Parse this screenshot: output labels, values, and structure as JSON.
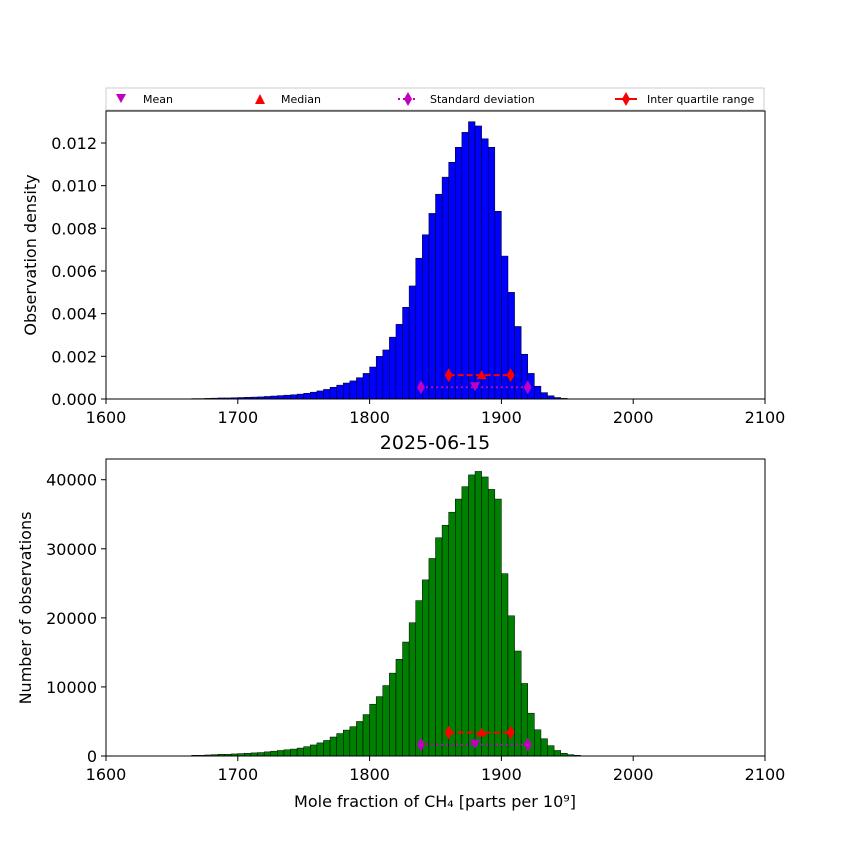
{
  "chart_data": [
    {
      "type": "bar",
      "variant": "histogram",
      "title": "",
      "xlabel": "",
      "ylabel": "Observation density",
      "xlim": [
        1600,
        2100
      ],
      "ylim": [
        0,
        0.0135
      ],
      "xticks": [
        "1600",
        "1700",
        "1800",
        "1900",
        "2000",
        "2100"
      ],
      "yticks": [
        "0.000",
        "0.002",
        "0.004",
        "0.006",
        "0.008",
        "0.010",
        "0.012"
      ],
      "bar_color": "#0000ff",
      "bin_width": 5,
      "bin_start": 1660,
      "values": [
        0,
        2e-05,
        2e-05,
        3e-05,
        4e-05,
        5e-05,
        5e-05,
        6e-05,
        7e-05,
        8e-05,
        9e-05,
        0.0001,
        0.00012,
        0.00014,
        0.00016,
        0.00018,
        0.0002,
        0.00023,
        0.00027,
        0.00032,
        0.00038,
        0.00045,
        0.00055,
        0.00065,
        0.00075,
        0.00085,
        0.001,
        0.0012,
        0.0015,
        0.002,
        0.0023,
        0.0029,
        0.0035,
        0.0043,
        0.0053,
        0.0066,
        0.0077,
        0.0087,
        0.0096,
        0.0104,
        0.0111,
        0.0118,
        0.0125,
        0.013,
        0.0128,
        0.0122,
        0.0118,
        0.0088,
        0.0067,
        0.005,
        0.0034,
        0.0021,
        0.0012,
        0.0006,
        0.0003,
        0.00015,
        7e-05,
        3e-05
      ],
      "markers": {
        "level": 0.00055,
        "mean": 1880,
        "std_range": [
          1839,
          1920
        ],
        "level_iqr": 0.00112,
        "median": 1885,
        "iqr_range": [
          1860,
          1907
        ]
      }
    },
    {
      "type": "bar",
      "variant": "histogram",
      "title": "2025-06-15",
      "xlabel": "Mole fraction of CH₄ [parts per 10⁹]",
      "ylabel": "Number of observations",
      "xlim": [
        1600,
        2100
      ],
      "ylim": [
        0,
        43000
      ],
      "xticks": [
        "1600",
        "1700",
        "1800",
        "1900",
        "2000",
        "2100"
      ],
      "yticks": [
        "0",
        "10000",
        "20000",
        "30000",
        "40000"
      ],
      "bar_color": "#008000",
      "bin_width": 5,
      "bin_start": 1660,
      "values": [
        0,
        100,
        100,
        150,
        200,
        250,
        250,
        300,
        350,
        400,
        450,
        500,
        600,
        700,
        800,
        900,
        1000,
        1150,
        1350,
        1600,
        1900,
        2250,
        2750,
        3250,
        3750,
        4250,
        5000,
        6000,
        7500,
        8600,
        10200,
        12000,
        14000,
        16500,
        19300,
        22500,
        25500,
        28600,
        31600,
        33400,
        35300,
        37200,
        39000,
        40700,
        41200,
        40400,
        38600,
        37200,
        26400,
        20300,
        15200,
        10500,
        6200,
        3800,
        2500,
        1500,
        800,
        400,
        200,
        100
      ],
      "markers": {
        "level": 1650,
        "mean": 1880,
        "std_range": [
          1839,
          1920
        ],
        "level_iqr": 3400,
        "median": 1885,
        "iqr_range": [
          1860,
          1907
        ]
      }
    }
  ],
  "legend": {
    "placement": "top",
    "entries": [
      {
        "label": "Mean",
        "marker": "triangle-down",
        "color": "#bf00bf"
      },
      {
        "label": "Median",
        "marker": "triangle-up",
        "color": "#ff0000"
      },
      {
        "label": "Standard deviation",
        "marker": "thin-diamond",
        "linestyle": "dotted",
        "color": "#bf00bf"
      },
      {
        "label": "Inter quartile range",
        "marker": "thin-diamond",
        "linestyle": "solid",
        "color": "#ff0000"
      }
    ]
  },
  "colors": {
    "mean": "#bf00bf",
    "median": "#ff0000",
    "std": "#bf00bf",
    "iqr": "#ff0000",
    "bar_edge": "#000000"
  }
}
